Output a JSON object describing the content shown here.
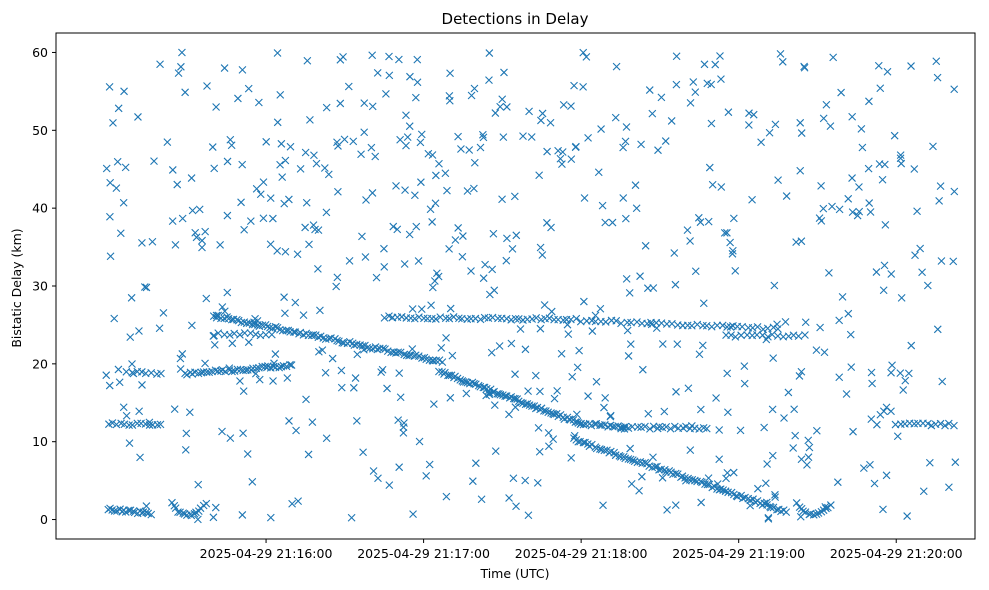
{
  "chart_data": {
    "type": "scatter",
    "title": "Detections in Delay",
    "xlabel": "Time (UTC)",
    "ylabel": "Bistatic Delay (km)",
    "xlim_seconds_after_21_15_00": [
      -20,
      330
    ],
    "ylim": [
      -2.5,
      62.5
    ],
    "x_ticks": [
      {
        "t": 60,
        "label": "2025-04-29 21:16:00"
      },
      {
        "t": 120,
        "label": "2025-04-29 21:17:00"
      },
      {
        "t": 180,
        "label": "2025-04-29 21:18:00"
      },
      {
        "t": 240,
        "label": "2025-04-29 21:19:00"
      },
      {
        "t": 300,
        "label": "2025-04-29 21:20:00"
      }
    ],
    "y_ticks": [
      0,
      10,
      20,
      30,
      40,
      50,
      60
    ],
    "marker": "x",
    "color": "#1f77b4",
    "series": [
      {
        "tracks": [
          {
            "kind": "track",
            "t_start": 0,
            "t_end": 16,
            "y_start": 1.3,
            "y_end": 0.8,
            "count": 20
          },
          {
            "kind": "arc",
            "t_start": 24,
            "t_end": 37,
            "y_min": 0.6,
            "y_max": 2.0,
            "count": 16
          },
          {
            "kind": "track",
            "t_start": 29,
            "t_end": 70,
            "y_start": 18.7,
            "y_end": 19.8,
            "count": 40
          },
          {
            "kind": "track",
            "t_start": 40,
            "t_end": 127,
            "y_start": 26.2,
            "y_end": 20.3,
            "count": 90
          },
          {
            "kind": "track",
            "t_start": 126,
            "t_end": 180,
            "y_start": 19.0,
            "y_end": 12.3,
            "count": 70
          },
          {
            "kind": "track",
            "t_start": 180,
            "t_end": 197,
            "y_start": 12.3,
            "y_end": 11.9,
            "count": 18
          },
          {
            "kind": "track",
            "t_start": 177,
            "t_end": 258,
            "y_start": 10.3,
            "y_end": 1.0,
            "count": 90
          },
          {
            "kind": "arc",
            "t_start": 262,
            "t_end": 275,
            "y_min": 0.7,
            "y_max": 2.0,
            "count": 15
          },
          {
            "kind": "track",
            "t_start": 40,
            "t_end": 62,
            "y_start": 23.8,
            "y_end": 23.8,
            "count": 12
          },
          {
            "kind": "track",
            "t_start": 105,
            "t_end": 178,
            "y_start": 26.0,
            "y_end": 25.7,
            "count": 45
          },
          {
            "kind": "track",
            "t_start": 180,
            "t_end": 255,
            "y_start": 25.6,
            "y_end": 24.5,
            "count": 40
          },
          {
            "kind": "track",
            "t_start": 0,
            "t_end": 20,
            "y_start": 12.3,
            "y_end": 12.3,
            "count": 14
          },
          {
            "kind": "track",
            "t_start": 195,
            "t_end": 228,
            "y_start": 11.8,
            "y_end": 11.8,
            "count": 22
          },
          {
            "kind": "track",
            "t_start": 235,
            "t_end": 265,
            "y_start": 23.6,
            "y_end": 23.6,
            "count": 16
          },
          {
            "kind": "track",
            "t_start": 300,
            "t_end": 322,
            "y_start": 12.2,
            "y_end": 12.2,
            "count": 14
          },
          {
            "kind": "track",
            "t_start": 7,
            "t_end": 20,
            "y_start": 19.0,
            "y_end": 18.7,
            "count": 8
          }
        ],
        "noise": {
          "t_range": [
            -2,
            323
          ],
          "y_range": [
            0,
            60
          ],
          "count": 650
        }
      }
    ]
  }
}
